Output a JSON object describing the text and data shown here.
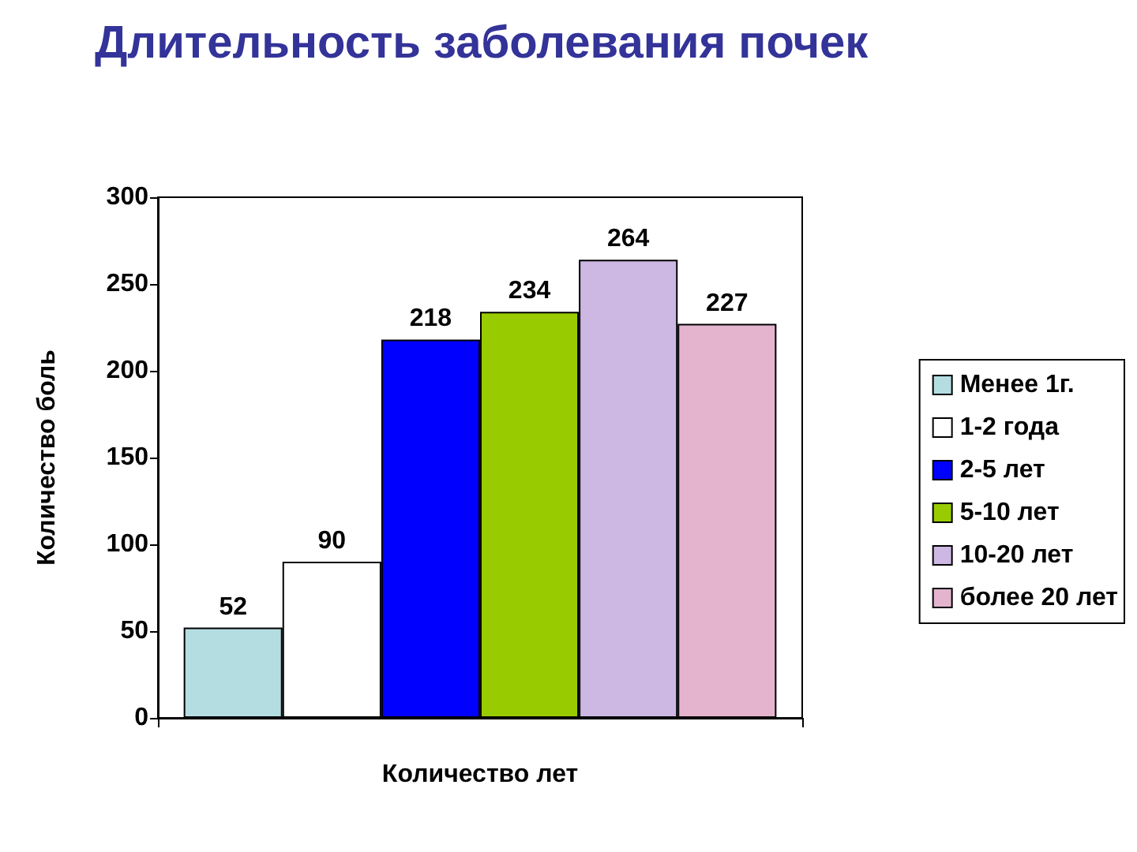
{
  "chart_data": {
    "type": "bar",
    "title": "Длительность заболевания почек",
    "xlabel": "Количество лет",
    "ylabel": "Количество боль",
    "categories": [
      null
    ],
    "series": [
      {
        "name": "Менее 1г.",
        "color": "#b4dde2",
        "values": [
          52
        ]
      },
      {
        "name": "1-2 года",
        "color": "#ffffff",
        "values": [
          90
        ]
      },
      {
        "name": "2-5 лет",
        "color": "#0000ff",
        "values": [
          218
        ]
      },
      {
        "name": "5-10 лет",
        "color": "#99cc00",
        "values": [
          234
        ]
      },
      {
        "name": "10-20 лет",
        "color": "#cdb8e4",
        "values": [
          264
        ]
      },
      {
        "name": "более 20 лет",
        "color": "#e4b4cf",
        "values": [
          227
        ]
      }
    ],
    "ylim": [
      0,
      300
    ],
    "yticks": [
      0,
      50,
      100,
      150,
      200,
      250,
      300
    ],
    "legend": "right",
    "data_labels": true
  }
}
